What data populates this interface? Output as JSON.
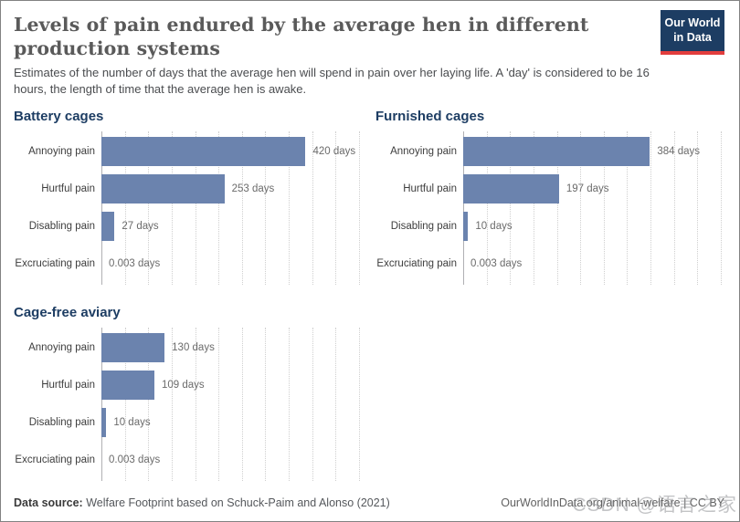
{
  "header": {
    "title": "Levels of pain endured by the average hen in different production systems",
    "subtitle": "Estimates of the number of days that the average hen will spend in pain over her laying life. A 'day' is considered to be 16 hours, the length of time that the average hen is awake.",
    "logo": {
      "line1": "Our World",
      "line2": "in Data"
    }
  },
  "chart_data": [
    {
      "type": "bar",
      "orientation": "horizontal",
      "title": "Battery cages",
      "categories": [
        "Annoying pain",
        "Hurtful pain",
        "Disabling pain",
        "Excruciating pain"
      ],
      "values": [
        420,
        253,
        27,
        0.003
      ],
      "value_labels": [
        "420 days",
        "253 days",
        "27 days",
        "0.003 days"
      ],
      "unit": "days",
      "xlabel": "",
      "ylabel": "",
      "xlim": [
        0,
        530
      ],
      "gridline_intervals": 11,
      "grid": true,
      "legend": "none"
    },
    {
      "type": "bar",
      "orientation": "horizontal",
      "title": "Furnished cages",
      "categories": [
        "Annoying pain",
        "Hurtful pain",
        "Disabling pain",
        "Excruciating pain"
      ],
      "values": [
        384,
        197,
        10,
        0.003
      ],
      "value_labels": [
        "384 days",
        "197 days",
        "10 days",
        "0.003 days"
      ],
      "unit": "days",
      "xlabel": "",
      "ylabel": "",
      "xlim": [
        0,
        530
      ],
      "gridline_intervals": 11,
      "grid": true,
      "legend": "none"
    },
    {
      "type": "bar",
      "orientation": "horizontal",
      "title": "Cage-free aviary",
      "categories": [
        "Annoying pain",
        "Hurtful pain",
        "Disabling pain",
        "Excruciating pain"
      ],
      "values": [
        130,
        109,
        10,
        0.003
      ],
      "value_labels": [
        "130 days",
        "109 days",
        "10 days",
        "0.003 days"
      ],
      "unit": "days",
      "xlabel": "",
      "ylabel": "",
      "xlim": [
        0,
        530
      ],
      "gridline_intervals": 11,
      "grid": true,
      "legend": "none"
    }
  ],
  "footer": {
    "source_label": "Data source:",
    "source_text": " Welfare Footprint based on Schuck-Paim and Alonso (2021)",
    "credit": "OurWorldInData.org/animal-welfare | CC BY"
  },
  "watermark": "CSDN @语言之家",
  "colors": {
    "bar": "#6b83ae",
    "chart_heading": "#1d3d63",
    "logo_bg": "#1d3d63",
    "logo_stripe": "#e23d3d",
    "title_text": "#5a5a5a"
  }
}
